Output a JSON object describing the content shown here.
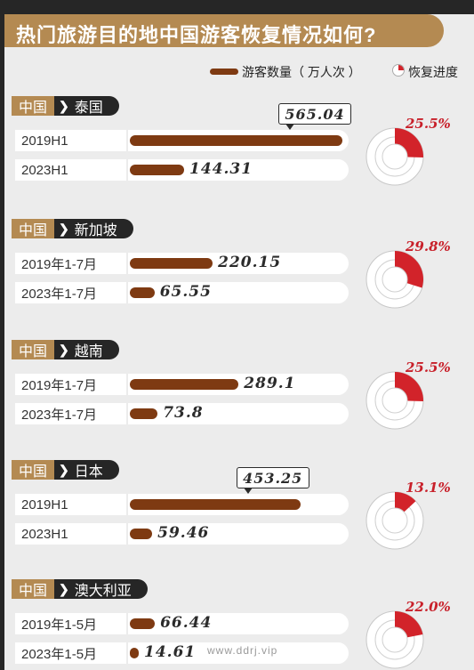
{
  "title": "热门旅游目的地中国游客恢复情况如何?",
  "legend": {
    "bar_label": "游客数量（ 万人次 ）",
    "ring_label": "恢复进度"
  },
  "watermark_url": "www.ddrj.vip",
  "colors": {
    "bar": "#7e3a12",
    "accent": "#b48a52",
    "recovery": "#d2232a",
    "dark": "#262626"
  },
  "chart_data": {
    "type": "bar",
    "unit": "万人次",
    "groups": [
      {
        "origin": "中国",
        "destination": "泰国",
        "rows": [
          {
            "period": "2019H1",
            "value": 565.04,
            "label": "565.04"
          },
          {
            "period": "2023H1",
            "value": 144.31,
            "label": "144.31"
          }
        ],
        "recovery": 25.5,
        "recovery_label": "25.5%"
      },
      {
        "origin": "中国",
        "destination": "新加坡",
        "rows": [
          {
            "period": "2019年1-7月",
            "value": 220.15,
            "label": "220.15"
          },
          {
            "period": "2023年1-7月",
            "value": 65.55,
            "label": "65.55"
          }
        ],
        "recovery": 29.8,
        "recovery_label": "29.8%"
      },
      {
        "origin": "中国",
        "destination": "越南",
        "rows": [
          {
            "period": "2019年1-7月",
            "value": 289.1,
            "label": "289.1"
          },
          {
            "period": "2023年1-7月",
            "value": 73.8,
            "label": "73.8"
          }
        ],
        "recovery": 25.5,
        "recovery_label": "25.5%"
      },
      {
        "origin": "中国",
        "destination": "日本",
        "rows": [
          {
            "period": "2019H1",
            "value": 453.25,
            "label": "453.25"
          },
          {
            "period": "2023H1",
            "value": 59.46,
            "label": "59.46"
          }
        ],
        "recovery": 13.1,
        "recovery_label": "13.1%"
      },
      {
        "origin": "中国",
        "destination": "澳大利亚",
        "rows": [
          {
            "period": "2019年1-5月",
            "value": 66.44,
            "label": "66.44"
          },
          {
            "period": "2023年1-5月",
            "value": 14.61,
            "label": "14.61"
          }
        ],
        "recovery": 22.0,
        "recovery_label": "22.0%"
      }
    ]
  }
}
